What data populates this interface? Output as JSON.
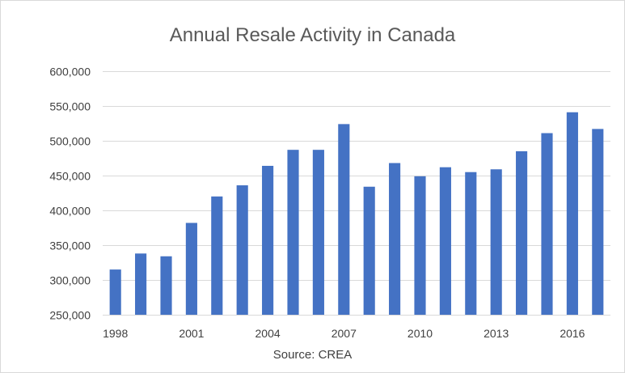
{
  "chart_data": {
    "type": "bar",
    "title": "Annual Resale Activity in Canada",
    "source": "Source: CREA",
    "x": [
      1998,
      1999,
      2000,
      2001,
      2002,
      2003,
      2004,
      2005,
      2006,
      2007,
      2008,
      2009,
      2010,
      2011,
      2012,
      2013,
      2014,
      2015,
      2016,
      2017
    ],
    "x_tick_labels": [
      "1998",
      "2001",
      "2004",
      "2007",
      "2010",
      "2013",
      "2016"
    ],
    "values": [
      315000,
      338000,
      334000,
      382000,
      420000,
      436000,
      464000,
      487000,
      487000,
      524000,
      434000,
      468000,
      449000,
      462000,
      455000,
      459000,
      485000,
      511000,
      541000,
      517000
    ],
    "ylim": [
      250000,
      600000
    ],
    "y_ticks": [
      250000,
      300000,
      350000,
      400000,
      450000,
      500000,
      550000,
      600000
    ],
    "y_tick_labels": [
      "250,000",
      "300,000",
      "350,000",
      "400,000",
      "450,000",
      "500,000",
      "550,000",
      "600,000"
    ],
    "bar_color": "#4472c4",
    "grid": true,
    "legend": "none"
  }
}
